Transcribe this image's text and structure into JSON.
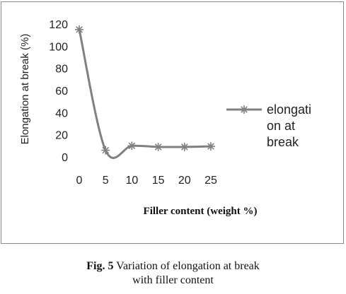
{
  "chart_data": {
    "type": "line",
    "x": [
      0,
      5,
      10,
      15,
      20,
      25
    ],
    "series": [
      {
        "name": "elongation at break",
        "values": [
          115,
          6,
          10,
          9,
          9,
          9.5
        ],
        "color": "#808080",
        "marker": "asterisk"
      }
    ],
    "xticks": [
      "0",
      "5",
      "10",
      "15",
      "20",
      "25"
    ],
    "yticks": [
      "0",
      "20",
      "40",
      "60",
      "80",
      "100",
      "120"
    ],
    "xlabel": "Filler content (weight %)",
    "ylabel": "Elongation at break (%)",
    "legend_lines": [
      "elongati",
      "on at",
      "break"
    ],
    "legend_position": "right",
    "ylim": [
      0,
      120
    ],
    "grid": false,
    "smooth": true
  },
  "caption": {
    "label": "Fig. 5",
    "text_line1": "Variation of elongation at break",
    "text_line2": "with filler content"
  }
}
